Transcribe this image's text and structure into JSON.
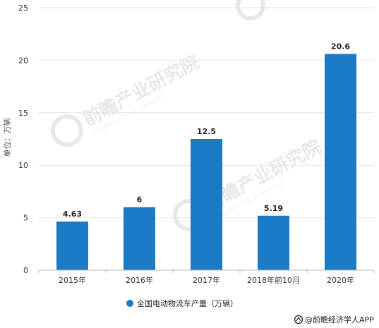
{
  "chart_data": {
    "type": "bar",
    "title": "",
    "xlabel": "",
    "ylabel": "单位：万辆",
    "categories": [
      "2015年",
      "2016年",
      "2017年",
      "2018年前10月",
      "2020年"
    ],
    "series": [
      {
        "name": "全国电动物流车产量（万辆）",
        "values": [
          4.63,
          6,
          12.5,
          5.19,
          20.6
        ],
        "color": "#1a7ac4"
      }
    ],
    "data_labels": [
      "4.63",
      "6",
      "12.5",
      "5.19",
      "20.6"
    ],
    "ylim": [
      0,
      25
    ],
    "yticks": [
      0,
      5,
      10,
      15,
      20,
      25
    ],
    "ytick_labels": [
      "0",
      "5",
      "10",
      "15",
      "20",
      "25"
    ],
    "grid": "horizontal",
    "legend_position": "bottom-center"
  },
  "credit": "@前瞻经济学人APP",
  "watermark": {
    "main": "前瞻产业研究院",
    "sub": "FORWARD THE ECONOMIST",
    "color": "#cfd8df"
  },
  "colors": {
    "bar": "#1a7ac4",
    "grid": "#e4e4e4",
    "axis": "#bbbbbb"
  }
}
